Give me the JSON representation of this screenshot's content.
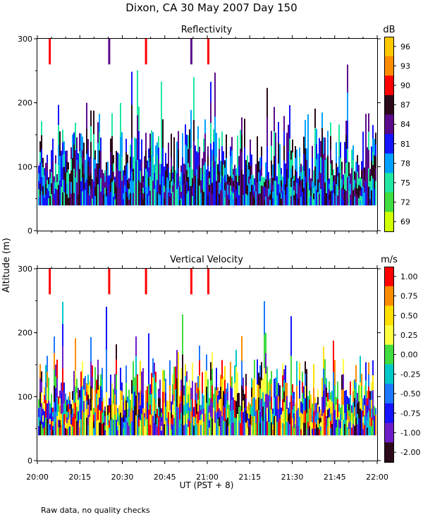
{
  "title": "Dixon, CA 30 May 2007  Day 150",
  "shared_ylabel": "Altitude (m)",
  "xlabel": "UT  (PST + 8)",
  "footnote": "Raw data, no quality checks",
  "x_ticks": [
    "20:00",
    "20:15",
    "20:30",
    "20:45",
    "21:00",
    "21:15",
    "21:30",
    "21:45",
    "22:00"
  ],
  "chart_data": [
    {
      "type": "heatmap",
      "title": "Reflectivity",
      "unit": "dB",
      "xlabel": "UT  (PST + 8)",
      "ylabel": "Altitude (m)",
      "xlim_minutes": [
        0,
        120
      ],
      "ylim": [
        0,
        300
      ],
      "y_ticks": [
        0,
        100,
        200,
        300
      ],
      "colorbar": {
        "labels": [
          "96",
          "93",
          "90",
          "87",
          "84",
          "81",
          "78",
          "75",
          "72",
          "69"
        ],
        "colors": [
          "#ffc800",
          "#ff8c00",
          "#ff0000",
          "#2a0a1a",
          "#5a0a8a",
          "#1414ff",
          "#00a0ff",
          "#20e8a0",
          "#40dc40",
          "#d0ff00"
        ]
      },
      "echo_layer_m": [
        40,
        180
      ],
      "tall_echo_times_min": [
        4,
        25,
        38,
        54,
        60
      ],
      "tall_echo_top_m": 300
    },
    {
      "type": "heatmap",
      "title": "Vertical Velocity",
      "unit": "m/s",
      "xlabel": "UT  (PST + 8)",
      "ylabel": "Altitude (m)",
      "xlim_minutes": [
        0,
        120
      ],
      "ylim": [
        0,
        300
      ],
      "y_ticks": [
        0,
        100,
        200,
        300
      ],
      "colorbar": {
        "labels": [
          "1.00",
          "0.75",
          "0.50",
          "0.25",
          "0.00",
          "-0.25",
          "-0.50",
          "-0.75",
          "-1.00",
          "-2.00"
        ],
        "colors": [
          "#ff0000",
          "#ff8c00",
          "#ffe000",
          "#ffff40",
          "#40dc40",
          "#00c8c8",
          "#1e78ff",
          "#1414ff",
          "#6e1ec8",
          "#2a0a1a"
        ]
      },
      "echo_layer_m": [
        40,
        180
      ],
      "tall_echo_times_min": [
        4,
        25,
        38,
        54,
        60
      ],
      "tall_echo_top_m": 300
    }
  ]
}
